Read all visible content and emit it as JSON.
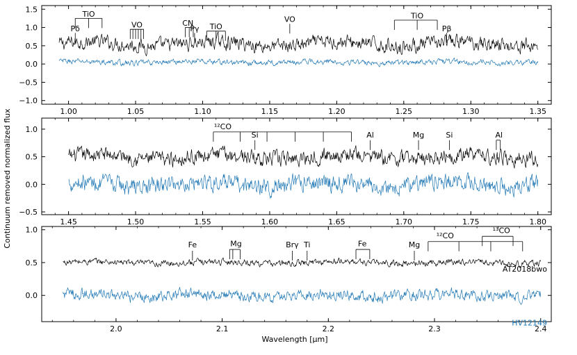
{
  "figure": {
    "ylabel": "Continuum removed normalized flux",
    "xlabel": "Wavelength [μm]"
  },
  "chart_data": [
    {
      "type": "line",
      "xlim": [
        0.98,
        1.36
      ],
      "ylim": [
        -1.1,
        1.6
      ],
      "xticks": [
        1.0,
        1.05,
        1.1,
        1.15,
        1.2,
        1.25,
        1.3,
        1.35
      ],
      "xtick_labels": [
        "1.00",
        "1.05",
        "1.10",
        "1.15",
        "1.20",
        "1.25",
        "1.30",
        "1.35"
      ],
      "yticks": [
        -1.0,
        -0.5,
        0.0,
        0.5,
        1.0,
        1.5
      ],
      "ytick_labels": [
        "−1.0",
        "−0.5",
        "0.0",
        "0.5",
        "1.0",
        "1.5"
      ],
      "series": [
        {
          "name": "AT2018bwo",
          "color": "#000000",
          "x_range": [
            0.993,
            1.35
          ],
          "base": 0.55,
          "noise": 0.2
        },
        {
          "name": "HV12149",
          "color": "#1f77b4",
          "x_range": [
            0.993,
            1.35
          ],
          "base": 0.05,
          "noise": 0.08
        }
      ],
      "line_ids": [
        {
          "label": "Pδ",
          "x": 1.005,
          "y": 0.85,
          "label_y": 0.9
        },
        {
          "label": "TiO",
          "x": 1.015,
          "y": 1.25,
          "label_y": 1.3,
          "ticks": [
            1.005,
            1.015,
            1.025
          ]
        },
        {
          "label": "VO",
          "x": 1.051,
          "y": 0.95,
          "label_y": 1.0,
          "ticks": [
            1.046,
            1.048,
            1.05,
            1.052,
            1.054,
            1.056
          ]
        },
        {
          "label": "CN",
          "x": 1.089,
          "y": 1.0,
          "label_y": 1.05,
          "ticks": [
            1.087,
            1.09,
            1.093
          ]
        },
        {
          "label": "Pγ",
          "x": 1.094,
          "y": 0.85,
          "label_y": 0.9
        },
        {
          "label": "TiO",
          "x": 1.11,
          "y": 0.9,
          "label_y": 0.95,
          "ticks": [
            1.103,
            1.11,
            1.117
          ]
        },
        {
          "label": "VO",
          "x": 1.165,
          "y": 1.1,
          "label_y": 1.15
        },
        {
          "label": "TiO",
          "x": 1.26,
          "y": 1.2,
          "label_y": 1.25,
          "ticks": [
            1.243,
            1.26,
            1.275
          ]
        },
        {
          "label": "Pβ",
          "x": 1.282,
          "y": 0.85,
          "label_y": 0.9
        }
      ]
    },
    {
      "type": "line",
      "xlim": [
        1.43,
        1.81
      ],
      "ylim": [
        -0.55,
        1.2
      ],
      "xticks": [
        1.45,
        1.5,
        1.55,
        1.6,
        1.65,
        1.7,
        1.75,
        1.8
      ],
      "xtick_labels": [
        "1.45",
        "1.50",
        "1.55",
        "1.60",
        "1.65",
        "1.70",
        "1.75",
        "1.80"
      ],
      "yticks": [
        -0.5,
        0.0,
        0.5,
        1.0
      ],
      "ytick_labels": [
        "−0.5",
        "0.0",
        "0.5",
        "1.0"
      ],
      "series": [
        {
          "name": "AT2018bwo",
          "color": "#000000",
          "x_range": [
            1.45,
            1.8
          ],
          "base": 0.5,
          "noise": 0.14
        },
        {
          "name": "HV12149",
          "color": "#1f77b4",
          "x_range": [
            1.45,
            1.8
          ],
          "base": 0.0,
          "noise": 0.16
        }
      ],
      "line_ids": [
        {
          "label": "¹²CO",
          "x": 1.565,
          "y": 0.95,
          "label_y": 1.0,
          "ticks": [
            1.558,
            1.578,
            1.598,
            1.619,
            1.64,
            1.661
          ]
        },
        {
          "label": "Si",
          "x": 1.589,
          "y": 0.8,
          "label_y": 0.85
        },
        {
          "label": "Al",
          "x": 1.675,
          "y": 0.8,
          "label_y": 0.85
        },
        {
          "label": "Mg",
          "x": 1.711,
          "y": 0.8,
          "label_y": 0.85
        },
        {
          "label": "Si",
          "x": 1.734,
          "y": 0.8,
          "label_y": 0.85
        },
        {
          "label": "Al",
          "x": 1.771,
          "y": 0.8,
          "label_y": 0.85,
          "ticks": [
            1.769,
            1.772
          ]
        }
      ]
    },
    {
      "type": "line",
      "xlim": [
        1.93,
        2.41
      ],
      "ylim": [
        -0.4,
        1.05
      ],
      "xticks": [
        2.0,
        2.1,
        2.2,
        2.3,
        2.4
      ],
      "xtick_labels": [
        "2.0",
        "2.1",
        "2.2",
        "2.3",
        "2.4"
      ],
      "yticks": [
        0.0,
        0.5,
        1.0
      ],
      "ytick_labels": [
        "0.0",
        "0.5",
        "1.0"
      ],
      "series": [
        {
          "name": "AT2018bwo",
          "color": "#000000",
          "x_range": [
            1.95,
            2.4
          ],
          "base": 0.5,
          "noise": 0.05
        },
        {
          "name": "HV12149",
          "color": "#1f77b4",
          "x_range": [
            1.95,
            2.4
          ],
          "base": 0.0,
          "noise": 0.09
        }
      ],
      "legend_labels": [
        {
          "text": "AT2018bwo",
          "color": "#000000"
        },
        {
          "text": "HV12149",
          "color": "#1f77b4"
        }
      ],
      "line_ids": [
        {
          "label": "Fe",
          "x": 2.072,
          "y": 0.68,
          "label_y": 0.73
        },
        {
          "label": "Mg",
          "x": 2.113,
          "y": 0.7,
          "label_y": 0.75,
          "ticks": [
            2.107,
            2.11,
            2.117
          ]
        },
        {
          "label": "Brγ",
          "x": 2.166,
          "y": 0.68,
          "label_y": 0.73
        },
        {
          "label": "Ti",
          "x": 2.18,
          "y": 0.68,
          "label_y": 0.73
        },
        {
          "label": "Fe",
          "x": 2.232,
          "y": 0.7,
          "label_y": 0.75,
          "ticks": [
            2.226,
            2.239
          ]
        },
        {
          "label": "Mg",
          "x": 2.281,
          "y": 0.68,
          "label_y": 0.73
        },
        {
          "label": "¹²CO",
          "x": 2.31,
          "y": 0.82,
          "label_y": 0.87,
          "ticks": [
            2.294,
            2.323,
            2.353,
            2.383
          ]
        },
        {
          "label": "¹³CO",
          "x": 2.363,
          "y": 0.9,
          "label_y": 0.95,
          "ticks": [
            2.345,
            2.374
          ]
        }
      ]
    }
  ]
}
